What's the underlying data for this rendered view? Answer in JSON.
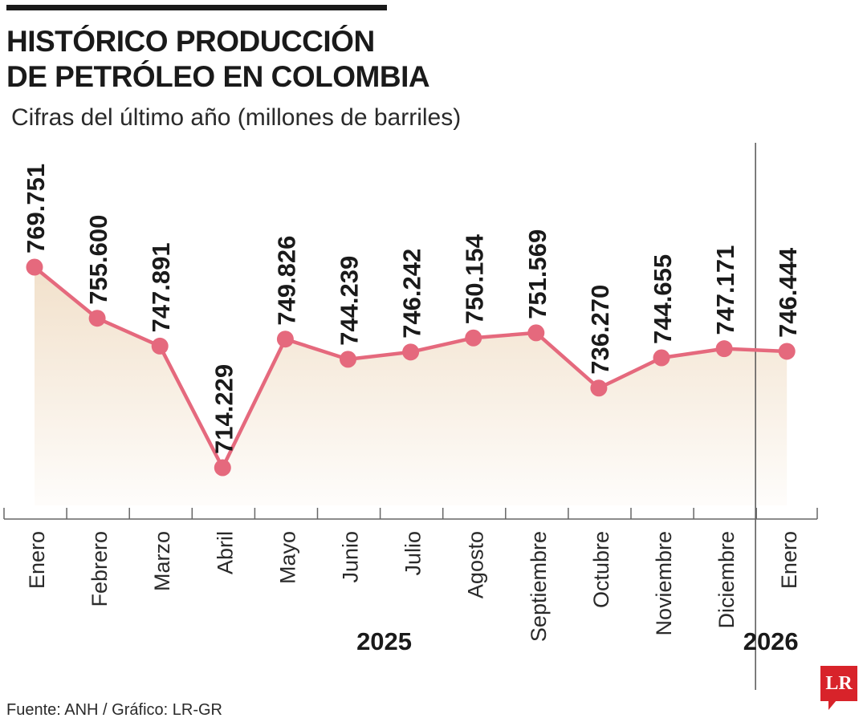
{
  "chart_data": {
    "type": "line",
    "title": "HISTÓRICO PRODUCCIÓN\nDE PETRÓLEO EN COLOMBIA",
    "subtitle": "Cifras del último año (millones de barriles)",
    "categories": [
      "Enero",
      "Febrero",
      "Marzo",
      "Abril",
      "Mayo",
      "Junio",
      "Julio",
      "Agosto",
      "Septiembre",
      "Octubre",
      "Noviembre",
      "Diciembre",
      "Enero"
    ],
    "year_labels": [
      {
        "label": "2025",
        "categories": [
          "Enero",
          "Febrero",
          "Marzo",
          "Abril",
          "Mayo",
          "Junio",
          "Julio",
          "Agosto",
          "Septiembre",
          "Octubre",
          "Noviembre",
          "Diciembre"
        ]
      },
      {
        "label": "2026",
        "categories": [
          "Enero"
        ]
      }
    ],
    "series": [
      {
        "values": [
          769.751,
          755.6,
          747.891,
          714.229,
          749.826,
          744.239,
          746.242,
          750.154,
          751.569,
          736.27,
          744.655,
          747.171,
          746.444
        ],
        "value_labels": [
          "769.751",
          "755.600",
          "747.891",
          "714.229",
          "749.826",
          "744.239",
          "746.242",
          "750.154",
          "751.569",
          "736.270",
          "744.655",
          "747.171",
          "746.444"
        ]
      }
    ],
    "xlabel": "",
    "ylabel": "",
    "grid": false,
    "area_fill": true,
    "colors": {
      "line": "#e5697d",
      "marker": "#e5697d",
      "fill": "#f1dfc8",
      "text": "#1a1a1a"
    }
  },
  "source": "Fuente: ANH / Gráfico: LR-GR",
  "logo": "LR"
}
